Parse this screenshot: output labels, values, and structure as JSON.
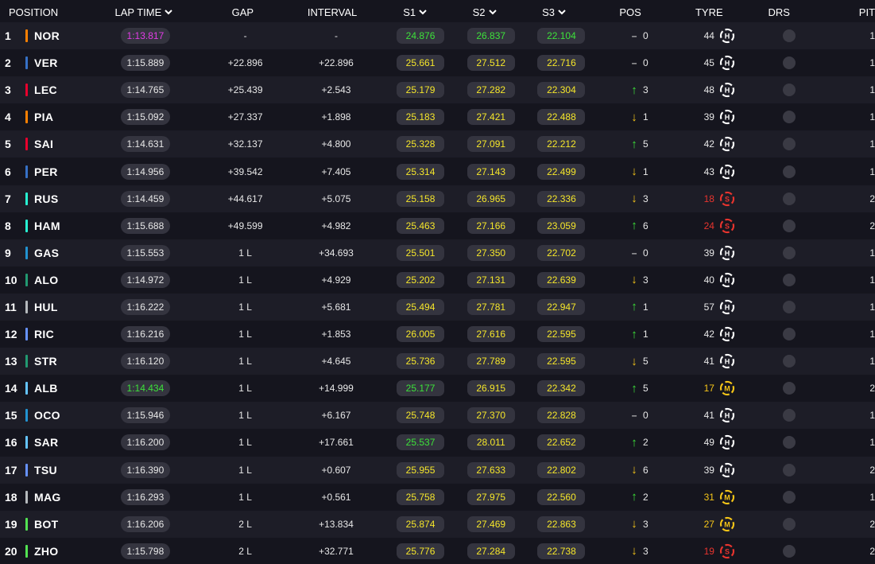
{
  "header": {
    "position": "POSITION",
    "lap_time": "LAP TIME",
    "gap": "GAP",
    "interval": "INTERVAL",
    "s1": "S1",
    "s2": "S2",
    "s3": "S3",
    "pos": "POS",
    "tyre": "TYRE",
    "drs": "DRS",
    "pit": "PIT"
  },
  "colors": {
    "purple": "#e23ce6",
    "green": "#3de23a",
    "yellow": "#f5e62a",
    "hard": "#ffffff",
    "medium": "#f5c518",
    "soft": "#e8342e"
  },
  "rows": [
    {
      "pos": "1",
      "code": "NOR",
      "team": "#ff8000",
      "lap": "1:13.817",
      "lapColor": "purple",
      "gap": "-",
      "interval": "-",
      "s1": "24.876",
      "s1c": "green",
      "s2": "26.837",
      "s2c": "green",
      "s3": "22.104",
      "s3c": "green",
      "dir": "same",
      "change": "0",
      "tyreLaps": "44",
      "tyre": "H",
      "pit": "1"
    },
    {
      "pos": "2",
      "code": "VER",
      "team": "#3671c6",
      "lap": "1:15.889",
      "lapColor": "",
      "gap": "+22.896",
      "interval": "+22.896",
      "s1": "25.661",
      "s1c": "yellow",
      "s2": "27.512",
      "s2c": "yellow",
      "s3": "22.716",
      "s3c": "yellow",
      "dir": "same",
      "change": "0",
      "tyreLaps": "45",
      "tyre": "H",
      "pit": "1"
    },
    {
      "pos": "3",
      "code": "LEC",
      "team": "#e8002d",
      "lap": "1:14.765",
      "lapColor": "",
      "gap": "+25.439",
      "interval": "+2.543",
      "s1": "25.179",
      "s1c": "yellow",
      "s2": "27.282",
      "s2c": "yellow",
      "s3": "22.304",
      "s3c": "yellow",
      "dir": "up",
      "change": "3",
      "tyreLaps": "48",
      "tyre": "H",
      "pit": "1"
    },
    {
      "pos": "4",
      "code": "PIA",
      "team": "#ff8000",
      "lap": "1:15.092",
      "lapColor": "",
      "gap": "+27.337",
      "interval": "+1.898",
      "s1": "25.183",
      "s1c": "yellow",
      "s2": "27.421",
      "s2c": "yellow",
      "s3": "22.488",
      "s3c": "yellow",
      "dir": "down",
      "change": "1",
      "tyreLaps": "39",
      "tyre": "H",
      "pit": "1"
    },
    {
      "pos": "5",
      "code": "SAI",
      "team": "#e8002d",
      "lap": "1:14.631",
      "lapColor": "",
      "gap": "+32.137",
      "interval": "+4.800",
      "s1": "25.328",
      "s1c": "yellow",
      "s2": "27.091",
      "s2c": "yellow",
      "s3": "22.212",
      "s3c": "yellow",
      "dir": "up",
      "change": "5",
      "tyreLaps": "42",
      "tyre": "H",
      "pit": "1"
    },
    {
      "pos": "6",
      "code": "PER",
      "team": "#3671c6",
      "lap": "1:14.956",
      "lapColor": "",
      "gap": "+39.542",
      "interval": "+7.405",
      "s1": "25.314",
      "s1c": "yellow",
      "s2": "27.143",
      "s2c": "yellow",
      "s3": "22.499",
      "s3c": "yellow",
      "dir": "down",
      "change": "1",
      "tyreLaps": "43",
      "tyre": "H",
      "pit": "1"
    },
    {
      "pos": "7",
      "code": "RUS",
      "team": "#27f4d2",
      "lap": "1:14.459",
      "lapColor": "",
      "gap": "+44.617",
      "interval": "+5.075",
      "s1": "25.158",
      "s1c": "yellow",
      "s2": "26.965",
      "s2c": "yellow",
      "s3": "22.336",
      "s3c": "yellow",
      "dir": "down",
      "change": "3",
      "tyreLaps": "18",
      "tyre": "S",
      "pit": "2"
    },
    {
      "pos": "8",
      "code": "HAM",
      "team": "#27f4d2",
      "lap": "1:15.688",
      "lapColor": "",
      "gap": "+49.599",
      "interval": "+4.982",
      "s1": "25.463",
      "s1c": "yellow",
      "s2": "27.166",
      "s2c": "yellow",
      "s3": "23.059",
      "s3c": "yellow",
      "dir": "up",
      "change": "6",
      "tyreLaps": "24",
      "tyre": "S",
      "pit": "2"
    },
    {
      "pos": "9",
      "code": "GAS",
      "team": "#2293d1",
      "lap": "1:15.553",
      "lapColor": "",
      "gap": "1 L",
      "interval": "+34.693",
      "s1": "25.501",
      "s1c": "yellow",
      "s2": "27.350",
      "s2c": "yellow",
      "s3": "22.702",
      "s3c": "yellow",
      "dir": "same",
      "change": "0",
      "tyreLaps": "39",
      "tyre": "H",
      "pit": "1"
    },
    {
      "pos": "10",
      "code": "ALO",
      "team": "#229971",
      "lap": "1:14.972",
      "lapColor": "",
      "gap": "1 L",
      "interval": "+4.929",
      "s1": "25.202",
      "s1c": "yellow",
      "s2": "27.131",
      "s2c": "yellow",
      "s3": "22.639",
      "s3c": "yellow",
      "dir": "down",
      "change": "3",
      "tyreLaps": "40",
      "tyre": "H",
      "pit": "1"
    },
    {
      "pos": "11",
      "code": "HUL",
      "team": "#b6babd",
      "lap": "1:16.222",
      "lapColor": "",
      "gap": "1 L",
      "interval": "+5.681",
      "s1": "25.494",
      "s1c": "yellow",
      "s2": "27.781",
      "s2c": "yellow",
      "s3": "22.947",
      "s3c": "yellow",
      "dir": "up",
      "change": "1",
      "tyreLaps": "57",
      "tyre": "H",
      "pit": "1"
    },
    {
      "pos": "12",
      "code": "RIC",
      "team": "#6692ff",
      "lap": "1:16.216",
      "lapColor": "",
      "gap": "1 L",
      "interval": "+1.853",
      "s1": "26.005",
      "s1c": "yellow",
      "s2": "27.616",
      "s2c": "yellow",
      "s3": "22.595",
      "s3c": "yellow",
      "dir": "up",
      "change": "1",
      "tyreLaps": "42",
      "tyre": "H",
      "pit": "1"
    },
    {
      "pos": "13",
      "code": "STR",
      "team": "#229971",
      "lap": "1:16.120",
      "lapColor": "",
      "gap": "1 L",
      "interval": "+4.645",
      "s1": "25.736",
      "s1c": "yellow",
      "s2": "27.789",
      "s2c": "yellow",
      "s3": "22.595",
      "s3c": "yellow",
      "dir": "down",
      "change": "5",
      "tyreLaps": "41",
      "tyre": "H",
      "pit": "1"
    },
    {
      "pos": "14",
      "code": "ALB",
      "team": "#64c4ff",
      "lap": "1:14.434",
      "lapColor": "green",
      "gap": "1 L",
      "interval": "+14.999",
      "s1": "25.177",
      "s1c": "green",
      "s2": "26.915",
      "s2c": "yellow",
      "s3": "22.342",
      "s3c": "yellow",
      "dir": "up",
      "change": "5",
      "tyreLaps": "17",
      "tyre": "M",
      "pit": "2"
    },
    {
      "pos": "15",
      "code": "OCO",
      "team": "#2293d1",
      "lap": "1:15.946",
      "lapColor": "",
      "gap": "1 L",
      "interval": "+6.167",
      "s1": "25.748",
      "s1c": "yellow",
      "s2": "27.370",
      "s2c": "yellow",
      "s3": "22.828",
      "s3c": "yellow",
      "dir": "same",
      "change": "0",
      "tyreLaps": "41",
      "tyre": "H",
      "pit": "1"
    },
    {
      "pos": "16",
      "code": "SAR",
      "team": "#64c4ff",
      "lap": "1:16.200",
      "lapColor": "",
      "gap": "1 L",
      "interval": "+17.661",
      "s1": "25.537",
      "s1c": "green",
      "s2": "28.011",
      "s2c": "yellow",
      "s3": "22.652",
      "s3c": "yellow",
      "dir": "up",
      "change": "2",
      "tyreLaps": "49",
      "tyre": "H",
      "pit": "1"
    },
    {
      "pos": "17",
      "code": "TSU",
      "team": "#6692ff",
      "lap": "1:16.390",
      "lapColor": "",
      "gap": "1 L",
      "interval": "+0.607",
      "s1": "25.955",
      "s1c": "yellow",
      "s2": "27.633",
      "s2c": "yellow",
      "s3": "22.802",
      "s3c": "yellow",
      "dir": "down",
      "change": "6",
      "tyreLaps": "39",
      "tyre": "H",
      "pit": "2"
    },
    {
      "pos": "18",
      "code": "MAG",
      "team": "#b6babd",
      "lap": "1:16.293",
      "lapColor": "",
      "gap": "1 L",
      "interval": "+0.561",
      "s1": "25.758",
      "s1c": "yellow",
      "s2": "27.975",
      "s2c": "yellow",
      "s3": "22.560",
      "s3c": "yellow",
      "dir": "up",
      "change": "2",
      "tyreLaps": "31",
      "tyre": "M",
      "pit": "1"
    },
    {
      "pos": "19",
      "code": "BOT",
      "team": "#52e252",
      "lap": "1:16.206",
      "lapColor": "",
      "gap": "2 L",
      "interval": "+13.834",
      "s1": "25.874",
      "s1c": "yellow",
      "s2": "27.469",
      "s2c": "yellow",
      "s3": "22.863",
      "s3c": "yellow",
      "dir": "down",
      "change": "3",
      "tyreLaps": "27",
      "tyre": "M",
      "pit": "2"
    },
    {
      "pos": "20",
      "code": "ZHO",
      "team": "#52e252",
      "lap": "1:15.798",
      "lapColor": "",
      "gap": "2 L",
      "interval": "+32.771",
      "s1": "25.776",
      "s1c": "yellow",
      "s2": "27.284",
      "s2c": "yellow",
      "s3": "22.738",
      "s3c": "yellow",
      "dir": "down",
      "change": "3",
      "tyreLaps": "19",
      "tyre": "S",
      "pit": "2"
    }
  ]
}
